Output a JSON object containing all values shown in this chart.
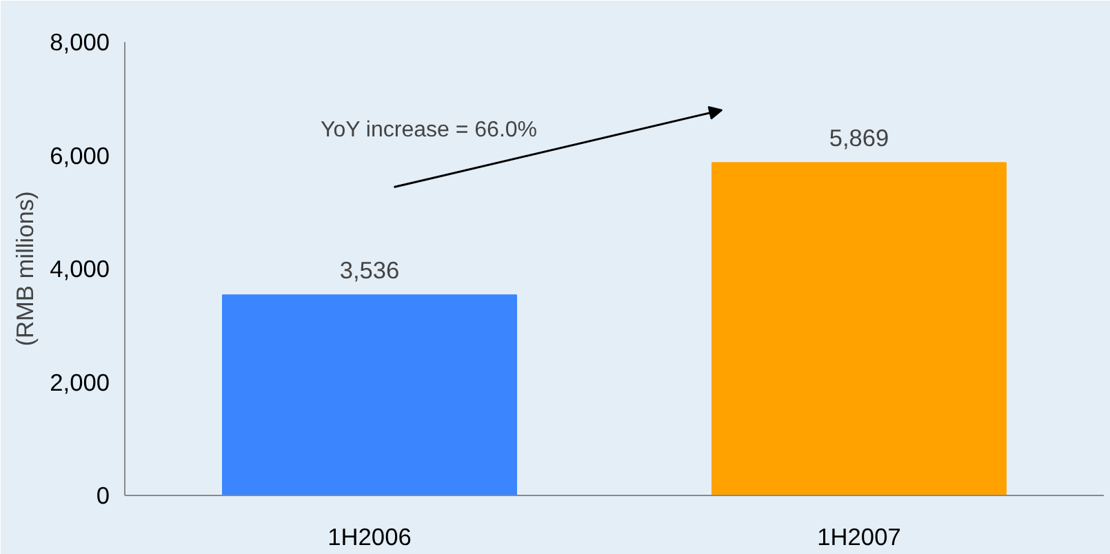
{
  "chart_data": {
    "type": "bar",
    "ylabel": "(RMB millions)",
    "categories": [
      "1H2006",
      "1H2007"
    ],
    "values": [
      3536,
      5869
    ],
    "colors": [
      "#3b85ff",
      "#ffa200"
    ],
    "ylim": [
      0,
      8000
    ],
    "yticks": [
      {
        "value": 0,
        "label": "0"
      },
      {
        "value": 2000,
        "label": "2,000"
      },
      {
        "value": 4000,
        "label": "4,000"
      },
      {
        "value": 6000,
        "label": "6,000"
      },
      {
        "value": 8000,
        "label": "8,000"
      }
    ],
    "value_labels": [
      "3,536",
      "5,869"
    ],
    "grid": false,
    "annotations": [
      "YoY increase = 66.0%"
    ]
  }
}
